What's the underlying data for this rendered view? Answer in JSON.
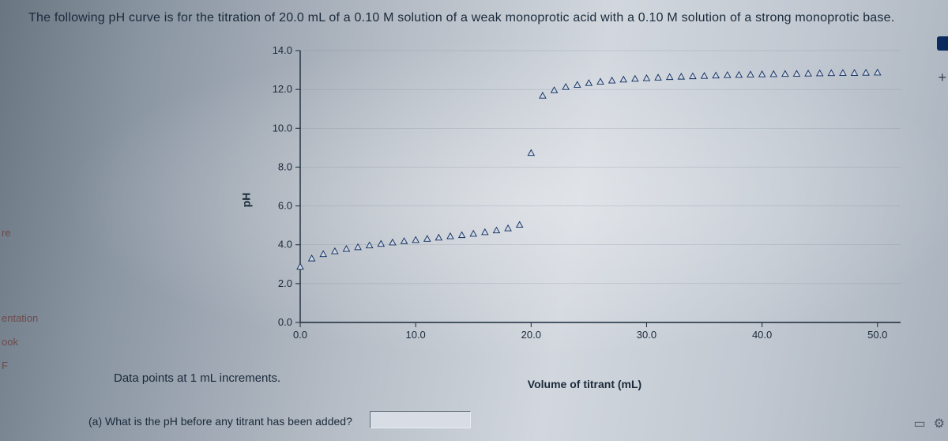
{
  "title": "The following pH curve is for the titration of 20.0 mL of a 0.10 M solution of a weak monoprotic acid with a 0.10 M solution of a strong monoprotic base.",
  "caption": "Data points at 1 mL increments.",
  "question": "(a) What is the pH before any titrant has been added?",
  "sidebar": {
    "items": [
      "re",
      "entation",
      "ook",
      "F"
    ]
  },
  "right": {
    "plus": "+"
  },
  "footer_icons": {
    "book": "▭",
    "gear": "⚙"
  },
  "chart": {
    "type": "scatter-line",
    "ylabel": "pH",
    "xlabel": "Volume of titrant (mL)",
    "xlim": [
      0,
      52
    ],
    "ylim": [
      0,
      14
    ],
    "xtick_values": [
      0,
      10,
      20,
      30,
      40,
      50
    ],
    "xtick_labels": [
      "0.0",
      "10.0",
      "20.0",
      "30.0",
      "40.0",
      "50.0"
    ],
    "ytick_values": [
      0,
      2,
      4,
      6,
      8,
      10,
      12,
      14
    ],
    "ytick_labels": [
      "0.0",
      "2.0",
      "4.0",
      "6.0",
      "8.0",
      "10.0",
      "12.0",
      "14.0"
    ],
    "axis_color": "#1a2a3a",
    "grid_color": "#7f8a97",
    "grid_width": 0.5,
    "marker_stroke": "#0b2a5e",
    "marker_fill": "#d2d8e1",
    "marker_size": 4,
    "title_fontsize": 16,
    "label_fontsize": 14,
    "tick_fontsize": 13,
    "points": [
      [
        0,
        2.87
      ],
      [
        1,
        3.3
      ],
      [
        2,
        3.52
      ],
      [
        3,
        3.67
      ],
      [
        4,
        3.79
      ],
      [
        5,
        3.88
      ],
      [
        6,
        3.97
      ],
      [
        7,
        4.05
      ],
      [
        8,
        4.12
      ],
      [
        9,
        4.19
      ],
      [
        10,
        4.25
      ],
      [
        11,
        4.31
      ],
      [
        12,
        4.37
      ],
      [
        13,
        4.44
      ],
      [
        14,
        4.5
      ],
      [
        15,
        4.57
      ],
      [
        16,
        4.65
      ],
      [
        17,
        4.74
      ],
      [
        18,
        4.85
      ],
      [
        19,
        5.03
      ],
      [
        20,
        8.73
      ],
      [
        21,
        11.68
      ],
      [
        22,
        11.96
      ],
      [
        23,
        12.13
      ],
      [
        24,
        12.24
      ],
      [
        25,
        12.33
      ],
      [
        26,
        12.4
      ],
      [
        27,
        12.46
      ],
      [
        28,
        12.51
      ],
      [
        29,
        12.55
      ],
      [
        30,
        12.58
      ],
      [
        31,
        12.61
      ],
      [
        32,
        12.64
      ],
      [
        33,
        12.66
      ],
      [
        34,
        12.68
      ],
      [
        35,
        12.7
      ],
      [
        36,
        12.72
      ],
      [
        37,
        12.74
      ],
      [
        38,
        12.75
      ],
      [
        39,
        12.77
      ],
      [
        40,
        12.78
      ],
      [
        41,
        12.79
      ],
      [
        42,
        12.8
      ],
      [
        43,
        12.81
      ],
      [
        44,
        12.82
      ],
      [
        45,
        12.83
      ],
      [
        46,
        12.84
      ],
      [
        47,
        12.85
      ],
      [
        48,
        12.85
      ],
      [
        49,
        12.86
      ],
      [
        50,
        12.87
      ]
    ]
  }
}
